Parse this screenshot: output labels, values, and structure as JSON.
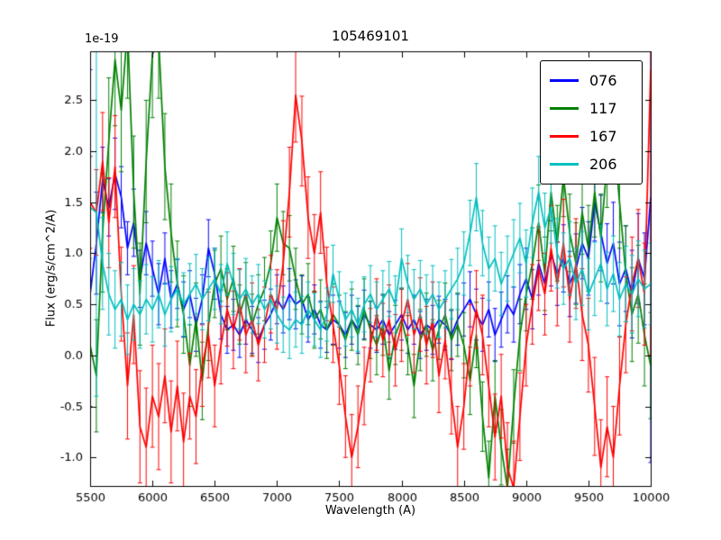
{
  "chart_data": {
    "type": "line",
    "title": "105469101",
    "xlabel": "Wavelength (A)",
    "ylabel": "Flux (erg/s/cm^2/A)",
    "y_offset_label": "1e-19",
    "grid": false,
    "legend_position": "upper right",
    "xlim": [
      5500,
      10000
    ],
    "ylim": [
      -1.28,
      2.98
    ],
    "x_ticks": [
      5500,
      6000,
      6500,
      7000,
      7500,
      8000,
      8500,
      9000,
      9500,
      10000
    ],
    "x_tick_labels": [
      "5500",
      "6000",
      "6500",
      "7000",
      "7500",
      "8000",
      "8500",
      "9000",
      "9500",
      "10000"
    ],
    "y_ticks": [
      -1.0,
      -0.5,
      0.0,
      0.5,
      1.0,
      1.5,
      2.0,
      2.5
    ],
    "y_tick_labels": [
      "-1.0",
      "-0.5",
      "0.0",
      "0.5",
      "1.0",
      "1.5",
      "2.0",
      "2.5"
    ],
    "x": [
      5500,
      5550,
      5600,
      5650,
      5700,
      5750,
      5800,
      5850,
      5900,
      5950,
      6000,
      6050,
      6100,
      6150,
      6200,
      6250,
      6300,
      6350,
      6400,
      6450,
      6500,
      6550,
      6600,
      6650,
      6700,
      6750,
      6800,
      6850,
      6900,
      6950,
      7000,
      7050,
      7100,
      7150,
      7200,
      7250,
      7300,
      7350,
      7400,
      7450,
      7500,
      7550,
      7600,
      7650,
      7700,
      7750,
      7800,
      7850,
      7900,
      7950,
      8000,
      8050,
      8100,
      8150,
      8200,
      8250,
      8300,
      8350,
      8400,
      8450,
      8500,
      8550,
      8600,
      8650,
      8700,
      8750,
      8800,
      8850,
      8900,
      8950,
      9000,
      9050,
      9100,
      9150,
      9200,
      9250,
      9300,
      9350,
      9400,
      9450,
      9500,
      9550,
      9600,
      9650,
      9700,
      9750,
      9800,
      9850,
      9900,
      9950,
      10000
    ],
    "series": [
      {
        "name": "076",
        "color": "#0000ff",
        "values": [
          0.6,
          1.1,
          1.72,
          1.45,
          1.78,
          1.55,
          1.05,
          1.3,
          0.75,
          1.1,
          0.85,
          0.6,
          0.95,
          0.55,
          0.7,
          0.45,
          0.6,
          0.3,
          0.55,
          1.05,
          0.8,
          0.4,
          0.25,
          0.3,
          0.2,
          0.35,
          0.25,
          0.15,
          0.3,
          0.4,
          0.55,
          0.45,
          0.6,
          0.5,
          0.55,
          0.35,
          0.45,
          0.3,
          0.25,
          0.35,
          0.3,
          0.2,
          0.35,
          0.25,
          0.4,
          0.3,
          0.25,
          0.35,
          0.2,
          0.3,
          0.4,
          0.25,
          0.35,
          0.2,
          0.3,
          0.25,
          0.35,
          0.3,
          0.2,
          0.35,
          0.45,
          0.55,
          0.4,
          0.3,
          0.45,
          0.2,
          0.35,
          0.5,
          0.4,
          0.6,
          0.75,
          0.55,
          0.9,
          0.7,
          1.0,
          0.8,
          0.95,
          0.7,
          0.85,
          1.1,
          0.95,
          1.5,
          1.2,
          0.9,
          1.1,
          0.7,
          0.85,
          0.6,
          0.95,
          0.75,
          1.55
        ],
        "err": [
          2.2,
          0.5,
          0.32,
          0.28,
          0.35,
          0.3,
          0.26,
          0.33,
          0.28,
          0.31,
          0.27,
          0.3,
          0.25,
          0.28,
          0.24,
          0.27,
          0.23,
          0.26,
          0.24,
          0.28,
          0.25,
          0.24,
          0.23,
          0.25,
          0.22,
          0.24,
          0.23,
          0.22,
          0.24,
          0.25,
          0.24,
          0.23,
          0.25,
          0.24,
          0.23,
          0.22,
          0.24,
          0.23,
          0.22,
          0.24,
          0.23,
          0.22,
          0.24,
          0.23,
          0.24,
          0.23,
          0.22,
          0.24,
          0.23,
          0.24,
          0.25,
          0.23,
          0.24,
          0.23,
          0.25,
          0.24,
          0.23,
          0.25,
          0.24,
          0.25,
          0.26,
          0.27,
          0.25,
          0.26,
          0.27,
          0.26,
          0.27,
          0.28,
          0.27,
          0.29,
          0.3,
          0.29,
          0.31,
          0.3,
          0.32,
          0.31,
          0.33,
          0.32,
          0.34,
          0.35,
          0.36,
          0.38,
          0.37,
          0.39,
          0.4,
          0.41,
          0.42,
          0.43,
          0.44,
          0.45,
          2.6
        ]
      },
      {
        "name": "117",
        "color": "#008000",
        "values": [
          0.1,
          -0.2,
          1.2,
          2.1,
          2.9,
          2.4,
          3.2,
          1.6,
          0.6,
          1.9,
          2.95,
          3.1,
          1.85,
          1.2,
          0.7,
          0.4,
          -0.1,
          0.35,
          -0.25,
          0.3,
          0.7,
          0.85,
          0.55,
          0.75,
          0.4,
          0.6,
          0.3,
          0.5,
          0.65,
          0.9,
          1.35,
          1.1,
          1.05,
          0.75,
          0.5,
          0.6,
          0.35,
          0.45,
          0.25,
          0.4,
          0.3,
          0.15,
          0.35,
          0.2,
          0.45,
          0.25,
          0.1,
          0.3,
          -0.15,
          0.2,
          0.35,
          0.1,
          -0.3,
          0.15,
          0.3,
          0.05,
          0.25,
          0.4,
          0.15,
          0.3,
          0.1,
          -0.25,
          0.2,
          -0.6,
          -1.2,
          -0.4,
          -0.9,
          -1.3,
          -0.5,
          0.2,
          0.6,
          0.9,
          1.3,
          0.8,
          1.6,
          1.1,
          1.75,
          1.2,
          0.9,
          1.4,
          1.05,
          1.6,
          1.15,
          1.9,
          2.2,
          1.5,
          0.8,
          0.4,
          0.6,
          0.2,
          -0.1
        ],
        "err": [
          0.6,
          0.55,
          0.58,
          0.62,
          0.65,
          0.6,
          0.68,
          0.55,
          0.5,
          0.6,
          0.62,
          0.58,
          0.52,
          0.48,
          0.42,
          0.38,
          0.4,
          0.36,
          0.38,
          0.35,
          0.33,
          0.32,
          0.3,
          0.32,
          0.29,
          0.31,
          0.3,
          0.29,
          0.31,
          0.32,
          0.33,
          0.31,
          0.32,
          0.3,
          0.29,
          0.3,
          0.28,
          0.29,
          0.28,
          0.3,
          0.29,
          0.28,
          0.3,
          0.29,
          0.3,
          0.28,
          0.29,
          0.3,
          0.28,
          0.29,
          0.3,
          0.29,
          0.31,
          0.3,
          0.31,
          0.3,
          0.29,
          0.31,
          0.3,
          0.31,
          0.32,
          0.33,
          0.32,
          0.34,
          0.36,
          0.35,
          0.37,
          0.38,
          0.36,
          0.35,
          0.36,
          0.35,
          0.37,
          0.36,
          0.38,
          0.37,
          0.39,
          0.38,
          0.4,
          0.41,
          0.42,
          0.44,
          0.43,
          0.45,
          0.46,
          0.45,
          0.47,
          0.46,
          0.48,
          0.5,
          0.52
        ]
      },
      {
        "name": "167",
        "color": "#ff0000",
        "values": [
          1.5,
          1.4,
          1.9,
          1.3,
          1.85,
          0.6,
          -0.3,
          0.4,
          -0.7,
          -0.9,
          -0.4,
          -0.6,
          -0.2,
          -0.75,
          -0.3,
          -0.85,
          -0.4,
          -0.6,
          -0.1,
          0.2,
          -0.3,
          0.1,
          0.45,
          0.25,
          0.5,
          0.2,
          0.35,
          0.1,
          0.3,
          0.6,
          0.45,
          0.9,
          1.6,
          2.55,
          2.1,
          1.35,
          1.0,
          1.4,
          0.7,
          0.3,
          -0.1,
          -0.6,
          -1.0,
          -0.7,
          -0.3,
          0.1,
          0.4,
          0.15,
          0.35,
          0.05,
          0.3,
          0.55,
          0.2,
          0.4,
          0.1,
          0.35,
          -0.2,
          0.15,
          -0.4,
          -0.9,
          -0.5,
          0.1,
          0.45,
          0.2,
          -0.3,
          -0.8,
          -0.4,
          -1.1,
          -1.3,
          -0.6,
          0.1,
          0.5,
          0.85,
          0.6,
          1.05,
          0.7,
          1.1,
          0.55,
          0.9,
          0.4,
          0.1,
          -0.5,
          -1.1,
          -0.7,
          -1.0,
          -0.3,
          0.3,
          0.7,
          0.95,
          0.6,
          2.8
        ],
        "err": [
          0.45,
          0.42,
          0.48,
          0.44,
          0.5,
          0.46,
          0.52,
          0.48,
          0.55,
          0.58,
          0.5,
          0.52,
          0.46,
          0.5,
          0.44,
          0.48,
          0.42,
          0.46,
          0.4,
          0.42,
          0.4,
          0.38,
          0.36,
          0.38,
          0.35,
          0.37,
          0.36,
          0.35,
          0.37,
          0.38,
          0.39,
          0.42,
          0.44,
          0.46,
          0.44,
          0.4,
          0.38,
          0.4,
          0.36,
          0.37,
          0.38,
          0.4,
          0.42,
          0.4,
          0.38,
          0.36,
          0.35,
          0.36,
          0.34,
          0.35,
          0.36,
          0.35,
          0.37,
          0.36,
          0.38,
          0.37,
          0.36,
          0.38,
          0.37,
          0.4,
          0.42,
          0.4,
          0.38,
          0.39,
          0.4,
          0.42,
          0.41,
          0.44,
          0.46,
          0.43,
          0.4,
          0.39,
          0.41,
          0.4,
          0.42,
          0.41,
          0.43,
          0.42,
          0.44,
          0.45,
          0.46,
          0.48,
          0.47,
          0.49,
          0.5,
          0.48,
          0.47,
          0.46,
          0.48,
          0.5,
          2.8
        ]
      },
      {
        "name": "206",
        "color": "#00bfbf",
        "values": [
          1.45,
          1.4,
          0.9,
          0.6,
          0.45,
          0.55,
          0.35,
          0.5,
          0.4,
          0.55,
          0.45,
          0.6,
          0.4,
          0.55,
          0.65,
          0.5,
          0.6,
          0.7,
          0.55,
          0.65,
          0.75,
          0.6,
          0.9,
          0.7,
          0.55,
          0.65,
          0.5,
          0.6,
          0.45,
          0.55,
          0.4,
          0.3,
          0.25,
          0.35,
          0.3,
          0.45,
          0.35,
          0.25,
          0.4,
          0.8,
          0.55,
          0.35,
          0.45,
          0.3,
          0.5,
          0.6,
          0.45,
          0.55,
          0.65,
          0.5,
          0.95,
          0.7,
          0.55,
          0.65,
          0.5,
          0.6,
          0.45,
          0.55,
          0.65,
          0.75,
          0.9,
          1.2,
          1.55,
          1.1,
          0.85,
          0.95,
          0.7,
          0.85,
          1.0,
          1.15,
          0.9,
          1.3,
          1.6,
          1.25,
          1.45,
          1.0,
          0.85,
          0.95,
          0.7,
          0.85,
          0.6,
          0.75,
          0.9,
          0.65,
          0.8,
          0.55,
          0.7,
          0.6,
          0.75,
          0.65,
          0.7
        ],
        "err": [
          0.5,
          1.8,
          0.45,
          0.4,
          0.38,
          0.36,
          0.34,
          0.35,
          0.33,
          0.34,
          0.32,
          0.33,
          0.31,
          0.32,
          0.3,
          0.31,
          0.3,
          0.29,
          0.3,
          0.31,
          0.3,
          0.29,
          0.31,
          0.3,
          0.29,
          0.3,
          0.28,
          0.29,
          0.28,
          0.29,
          0.28,
          0.27,
          0.28,
          0.27,
          0.28,
          0.27,
          0.26,
          0.27,
          0.26,
          0.28,
          0.27,
          0.26,
          0.27,
          0.26,
          0.27,
          0.28,
          0.27,
          0.28,
          0.27,
          0.28,
          0.29,
          0.28,
          0.29,
          0.28,
          0.29,
          0.28,
          0.27,
          0.28,
          0.29,
          0.3,
          0.31,
          0.32,
          0.33,
          0.32,
          0.31,
          0.32,
          0.31,
          0.32,
          0.33,
          0.34,
          0.33,
          0.34,
          0.35,
          0.34,
          0.35,
          0.34,
          0.35,
          0.36,
          0.35,
          0.36,
          0.35,
          0.36,
          0.37,
          0.36,
          0.37,
          0.36,
          0.37,
          0.38,
          0.37,
          0.38,
          0.4
        ]
      }
    ]
  }
}
